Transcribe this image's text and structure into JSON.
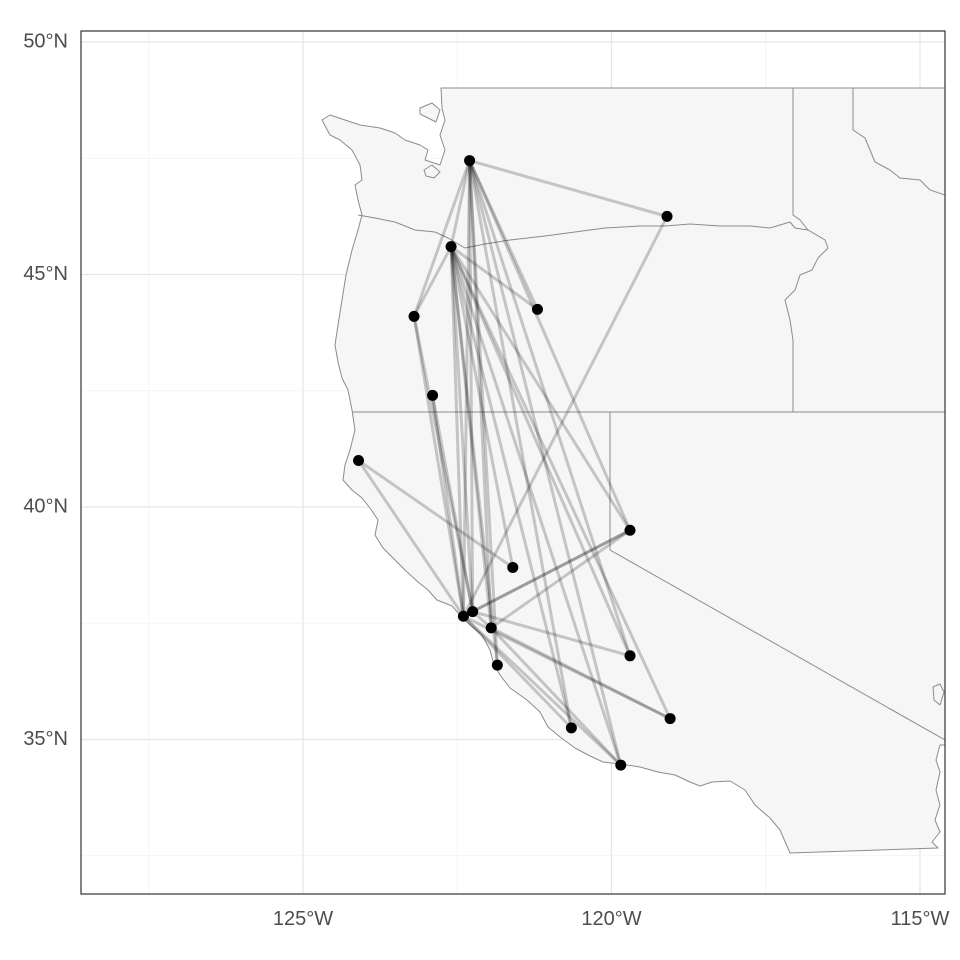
{
  "map": {
    "x_ticks": [
      {
        "lon": -125,
        "label": "125°W"
      },
      {
        "lon": -120,
        "label": "120°W"
      },
      {
        "lon": -115,
        "label": "115°W"
      }
    ],
    "y_ticks": [
      {
        "lat": 50,
        "label": "50°N"
      },
      {
        "lat": 45,
        "label": "45°N"
      },
      {
        "lat": 40,
        "label": "40°N"
      },
      {
        "lat": 35,
        "label": "35°N"
      }
    ],
    "colors": {
      "land": "#f6f6f6",
      "border": "#8c8c8c",
      "route": "#000000",
      "city": "#000000"
    }
  },
  "chart_data": {
    "type": "scatter",
    "xlim": [
      -128.6,
      -114.6
    ],
    "ylim": [
      31.8,
      50.3
    ],
    "grid": true,
    "points": [
      {
        "lon": -122.3,
        "lat": 47.45
      },
      {
        "lon": -119.1,
        "lat": 46.25
      },
      {
        "lon": -122.6,
        "lat": 45.6
      },
      {
        "lon": -121.2,
        "lat": 44.25
      },
      {
        "lon": -123.2,
        "lat": 44.1
      },
      {
        "lon": -122.9,
        "lat": 42.4
      },
      {
        "lon": -124.1,
        "lat": 41.0
      },
      {
        "lon": -119.7,
        "lat": 39.5
      },
      {
        "lon": -121.6,
        "lat": 38.7
      },
      {
        "lon": -122.25,
        "lat": 37.75
      },
      {
        "lon": -122.4,
        "lat": 37.65
      },
      {
        "lon": -121.95,
        "lat": 37.4
      },
      {
        "lon": -119.7,
        "lat": 36.8
      },
      {
        "lon": -121.85,
        "lat": 36.6
      },
      {
        "lon": -119.05,
        "lat": 35.45
      },
      {
        "lon": -120.65,
        "lat": 35.25
      },
      {
        "lon": -119.85,
        "lat": 34.45
      }
    ],
    "routes": [
      [
        0,
        1
      ],
      [
        0,
        2
      ],
      [
        0,
        3
      ],
      [
        0,
        4
      ],
      [
        0,
        9
      ],
      [
        0,
        10
      ],
      [
        0,
        11
      ],
      [
        0,
        13
      ],
      [
        0,
        12
      ],
      [
        0,
        16
      ],
      [
        0,
        15
      ],
      [
        0,
        7
      ],
      [
        1,
        10
      ],
      [
        2,
        4
      ],
      [
        2,
        7
      ],
      [
        2,
        9
      ],
      [
        2,
        10
      ],
      [
        2,
        11
      ],
      [
        2,
        12
      ],
      [
        2,
        13
      ],
      [
        2,
        15
      ],
      [
        2,
        16
      ],
      [
        2,
        14
      ],
      [
        2,
        8
      ],
      [
        2,
        3
      ],
      [
        4,
        9
      ],
      [
        4,
        10
      ],
      [
        5,
        9
      ],
      [
        5,
        10
      ],
      [
        6,
        8
      ],
      [
        6,
        10
      ],
      [
        7,
        9
      ],
      [
        7,
        10
      ],
      [
        7,
        11
      ],
      [
        9,
        12
      ],
      [
        9,
        11
      ],
      [
        10,
        14
      ],
      [
        10,
        15
      ],
      [
        10,
        16
      ],
      [
        11,
        14
      ],
      [
        11,
        16
      ]
    ]
  }
}
